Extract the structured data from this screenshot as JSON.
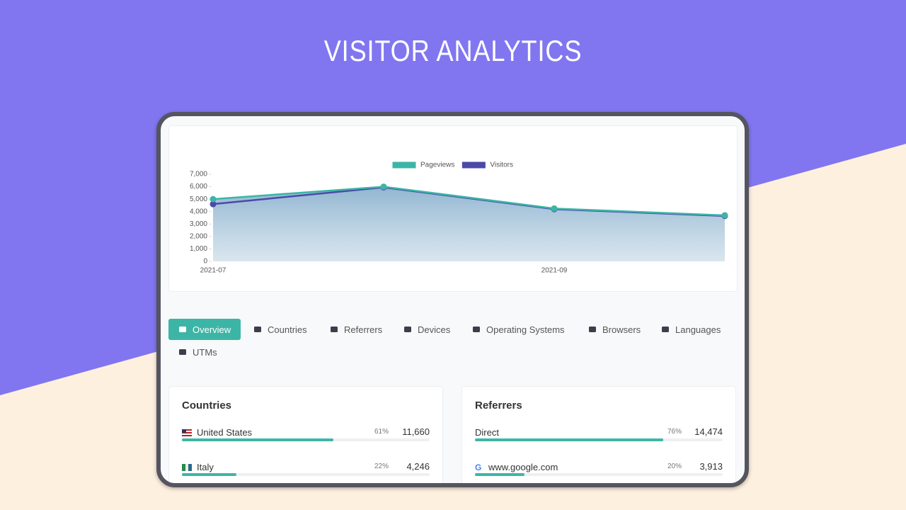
{
  "header": {
    "title": "VISITOR ANALYTICS"
  },
  "chart_data": {
    "type": "line",
    "categories": [
      "2021-07",
      null,
      "2021-09",
      null
    ],
    "series": [
      {
        "name": "Pageviews",
        "color": "#3db5a6",
        "values": [
          5000,
          6000,
          4250,
          3700
        ]
      },
      {
        "name": "Visitors",
        "color": "#4b4aa8",
        "values": [
          4600,
          5950,
          4200,
          3650
        ]
      }
    ],
    "ylim": [
      0,
      7000
    ],
    "yticks": [
      0,
      {
        "value": 1000,
        "label": "1,000"
      },
      {
        "value": 2000,
        "label": "2,000"
      },
      {
        "value": 3000,
        "label": "3,000"
      },
      {
        "value": 4000,
        "label": "4,000"
      },
      {
        "value": 5000,
        "label": "5,000"
      },
      {
        "value": 6000,
        "label": "6,000"
      },
      {
        "value": 7000,
        "label": "7,000"
      }
    ],
    "legend": "top",
    "area_fill": true
  },
  "tabs": [
    "Overview",
    "Countries",
    "Referrers",
    "Devices",
    "Operating Systems",
    "Browsers",
    "Languages",
    "UTMs"
  ],
  "countries": {
    "title": "Countries",
    "rows": [
      {
        "name": "United States",
        "percent": 61,
        "percent_label": "61%",
        "count": "11,660"
      },
      {
        "name": "Italy",
        "percent": 22,
        "percent_label": "22%",
        "count": "4,246"
      }
    ]
  },
  "referrers": {
    "title": "Referrers",
    "rows": [
      {
        "name": "Direct",
        "percent": 76,
        "percent_label": "76%",
        "count": "14,474"
      },
      {
        "name": "www.google.com",
        "percent": 20,
        "percent_label": "20%",
        "count": "3,913"
      }
    ]
  }
}
